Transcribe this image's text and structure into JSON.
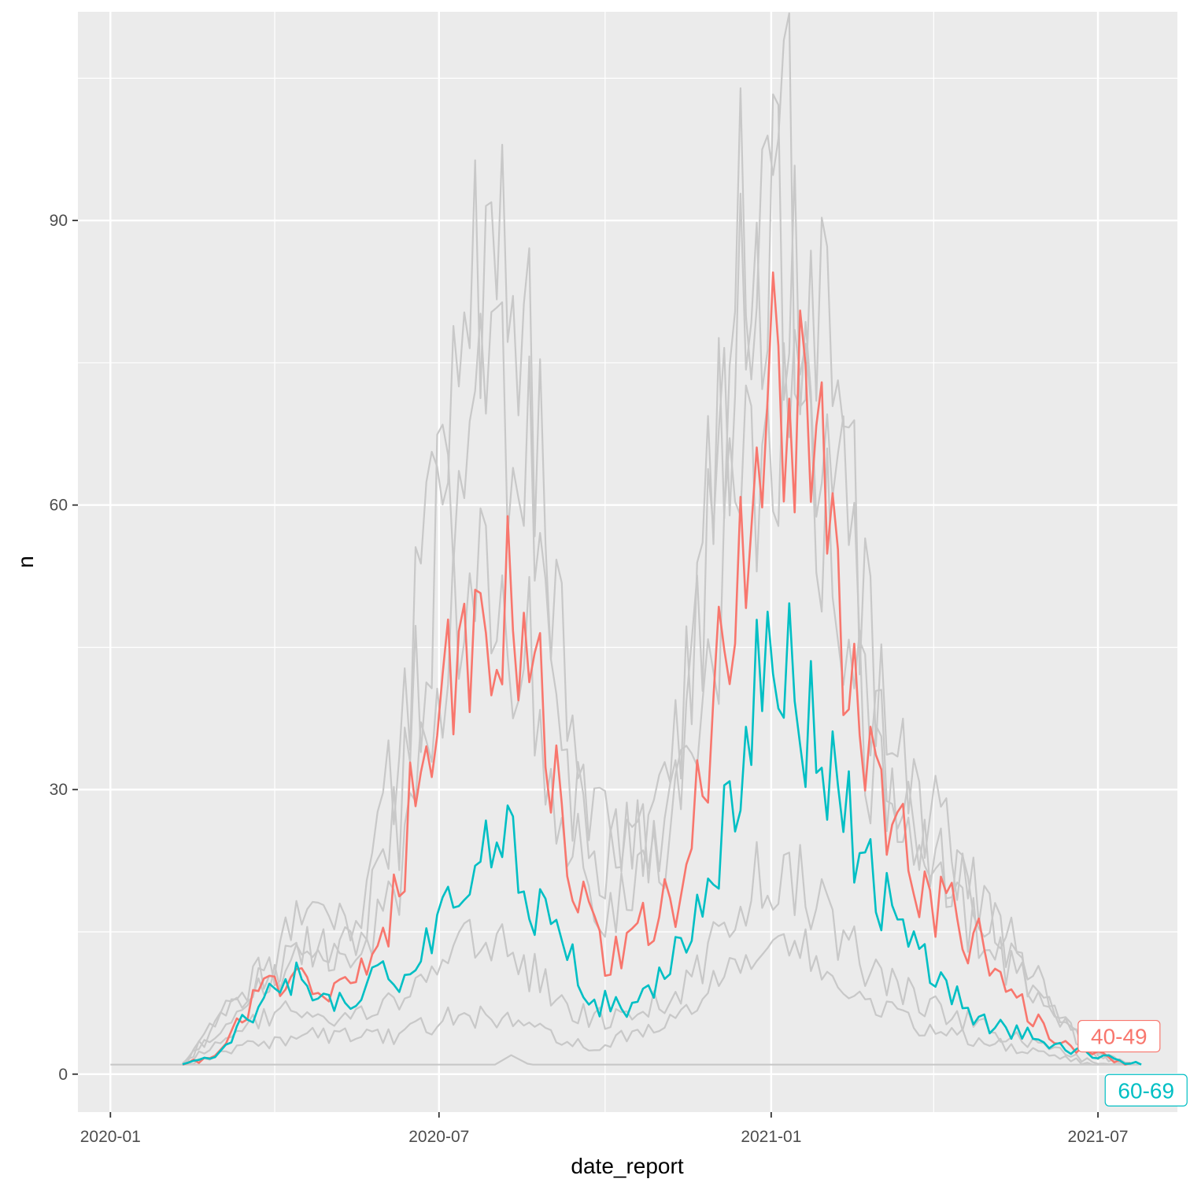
{
  "chart_data": {
    "type": "line",
    "title": "",
    "xlabel": "date_report",
    "ylabel": "n",
    "x_type": "date",
    "xlim": [
      "2019-12-14",
      "2021-08-14"
    ],
    "ylim": [
      -4,
      112
    ],
    "x_ticks": [
      {
        "date": "2020-01-01",
        "label": "2020-01"
      },
      {
        "date": "2020-07-01",
        "label": "2020-07"
      },
      {
        "date": "2021-01-01",
        "label": "2021-01"
      },
      {
        "date": "2021-07-01",
        "label": "2021-07"
      }
    ],
    "x_minor_ticks": [
      "2020-04-01",
      "2020-10-01",
      "2021-04-01"
    ],
    "y_ticks": [
      0,
      30,
      60,
      90
    ],
    "y_minor_ticks": [
      15,
      45,
      75,
      105
    ],
    "grid": true,
    "legend": "none",
    "colors": {
      "panel": "#ebebeb",
      "grid": "#ffffff",
      "background_series": "#c8c8c8",
      "series_40_49": "#f8766d",
      "series_60_69": "#00bfc4"
    },
    "highlighted_series": [
      {
        "name": "40-49",
        "color": "#f8766d",
        "label_end": "2021-07-20",
        "points": [
          [
            "2020-02-10",
            1
          ],
          [
            "2020-03-01",
            2
          ],
          [
            "2020-03-15",
            7
          ],
          [
            "2020-04-01",
            9
          ],
          [
            "2020-04-20",
            10
          ],
          [
            "2020-05-10",
            9
          ],
          [
            "2020-06-01",
            13
          ],
          [
            "2020-06-20",
            32
          ],
          [
            "2020-07-05",
            40
          ],
          [
            "2020-07-25",
            45
          ],
          [
            "2020-08-10",
            52
          ],
          [
            "2020-08-25",
            42
          ],
          [
            "2020-09-10",
            22
          ],
          [
            "2020-09-25",
            14
          ],
          [
            "2020-10-10",
            12
          ],
          [
            "2020-10-25",
            16
          ],
          [
            "2020-11-10",
            18
          ],
          [
            "2020-11-25",
            32
          ],
          [
            "2020-12-10",
            48
          ],
          [
            "2020-12-25",
            66
          ],
          [
            "2021-01-05",
            75
          ],
          [
            "2021-01-20",
            70
          ],
          [
            "2021-02-05",
            55
          ],
          [
            "2021-02-20",
            35
          ],
          [
            "2021-03-10",
            25
          ],
          [
            "2021-03-25",
            20
          ],
          [
            "2021-04-10",
            17
          ],
          [
            "2021-04-25",
            14
          ],
          [
            "2021-05-10",
            10
          ],
          [
            "2021-05-25",
            6
          ],
          [
            "2021-06-10",
            3
          ],
          [
            "2021-07-01",
            2
          ],
          [
            "2021-07-20",
            1
          ]
        ]
      },
      {
        "name": "60-69",
        "color": "#00bfc4",
        "label_end": "2021-07-25",
        "points": [
          [
            "2020-02-10",
            1
          ],
          [
            "2020-03-01",
            2
          ],
          [
            "2020-03-15",
            6
          ],
          [
            "2020-04-01",
            9
          ],
          [
            "2020-04-20",
            10
          ],
          [
            "2020-05-10",
            8
          ],
          [
            "2020-06-01",
            10
          ],
          [
            "2020-06-20",
            12
          ],
          [
            "2020-07-05",
            17
          ],
          [
            "2020-07-25",
            22
          ],
          [
            "2020-08-10",
            24
          ],
          [
            "2020-08-25",
            18
          ],
          [
            "2020-09-10",
            12
          ],
          [
            "2020-09-25",
            8
          ],
          [
            "2020-10-10",
            7
          ],
          [
            "2020-10-25",
            10
          ],
          [
            "2020-11-10",
            12
          ],
          [
            "2020-11-25",
            17
          ],
          [
            "2020-12-10",
            28
          ],
          [
            "2020-12-25",
            40
          ],
          [
            "2021-01-05",
            44
          ],
          [
            "2021-01-20",
            38
          ],
          [
            "2021-02-05",
            32
          ],
          [
            "2021-02-20",
            22
          ],
          [
            "2021-03-10",
            16
          ],
          [
            "2021-03-25",
            12
          ],
          [
            "2021-04-10",
            9
          ],
          [
            "2021-04-25",
            6
          ],
          [
            "2021-05-10",
            5
          ],
          [
            "2021-05-25",
            4
          ],
          [
            "2021-06-10",
            3
          ],
          [
            "2021-07-01",
            2
          ],
          [
            "2021-07-25",
            1
          ]
        ]
      }
    ],
    "background_series": [
      {
        "points": [
          [
            "2020-02-10",
            1
          ],
          [
            "2020-03-15",
            8
          ],
          [
            "2020-04-15",
            16
          ],
          [
            "2020-05-15",
            15
          ],
          [
            "2020-06-10",
            35
          ],
          [
            "2020-07-05",
            76
          ],
          [
            "2020-07-25",
            80
          ],
          [
            "2020-08-15",
            83
          ],
          [
            "2020-09-05",
            45
          ],
          [
            "2020-09-25",
            26
          ],
          [
            "2020-10-15",
            25
          ],
          [
            "2020-11-05",
            30
          ],
          [
            "2020-11-25",
            55
          ],
          [
            "2020-12-15",
            85
          ],
          [
            "2021-01-01",
            95
          ],
          [
            "2021-01-20",
            88
          ],
          [
            "2021-02-10",
            65
          ],
          [
            "2021-03-01",
            38
          ],
          [
            "2021-03-25",
            28
          ],
          [
            "2021-04-15",
            22
          ],
          [
            "2021-05-10",
            16
          ],
          [
            "2021-06-01",
            9
          ],
          [
            "2021-07-01",
            2
          ],
          [
            "2021-07-20",
            1
          ]
        ]
      },
      {
        "points": [
          [
            "2020-02-10",
            1
          ],
          [
            "2020-03-15",
            9
          ],
          [
            "2020-04-15",
            14
          ],
          [
            "2020-05-15",
            13
          ],
          [
            "2020-06-10",
            28
          ],
          [
            "2020-07-05",
            62
          ],
          [
            "2020-07-25",
            70
          ],
          [
            "2020-08-15",
            72
          ],
          [
            "2020-09-05",
            38
          ],
          [
            "2020-09-25",
            22
          ],
          [
            "2020-10-15",
            22
          ],
          [
            "2020-11-05",
            28
          ],
          [
            "2020-11-25",
            50
          ],
          [
            "2020-12-15",
            76
          ],
          [
            "2021-01-01",
            86
          ],
          [
            "2021-01-20",
            80
          ],
          [
            "2021-02-10",
            60
          ],
          [
            "2021-03-01",
            34
          ],
          [
            "2021-03-25",
            26
          ],
          [
            "2021-04-15",
            20
          ],
          [
            "2021-05-10",
            14
          ],
          [
            "2021-06-01",
            8
          ],
          [
            "2021-07-01",
            2
          ],
          [
            "2021-07-20",
            1
          ]
        ]
      },
      {
        "points": [
          [
            "2020-02-10",
            1
          ],
          [
            "2020-03-15",
            7
          ],
          [
            "2020-04-15",
            12
          ],
          [
            "2020-05-15",
            11
          ],
          [
            "2020-06-10",
            22
          ],
          [
            "2020-07-05",
            45
          ],
          [
            "2020-07-25",
            50
          ],
          [
            "2020-08-15",
            48
          ],
          [
            "2020-09-05",
            28
          ],
          [
            "2020-09-25",
            18
          ],
          [
            "2020-10-15",
            18
          ],
          [
            "2020-11-05",
            24
          ],
          [
            "2020-11-25",
            40
          ],
          [
            "2020-12-15",
            62
          ],
          [
            "2021-01-01",
            72
          ],
          [
            "2021-01-20",
            66
          ],
          [
            "2021-02-10",
            48
          ],
          [
            "2021-03-01",
            30
          ],
          [
            "2021-03-25",
            22
          ],
          [
            "2021-04-15",
            17
          ],
          [
            "2021-05-10",
            12
          ],
          [
            "2021-06-01",
            7
          ],
          [
            "2021-07-01",
            2
          ],
          [
            "2021-07-20",
            1
          ]
        ]
      },
      {
        "points": [
          [
            "2020-02-10",
            1
          ],
          [
            "2020-03-15",
            5
          ],
          [
            "2020-04-15",
            7
          ],
          [
            "2020-05-15",
            6
          ],
          [
            "2020-06-10",
            8
          ],
          [
            "2020-07-05",
            12
          ],
          [
            "2020-07-25",
            14
          ],
          [
            "2020-08-15",
            12
          ],
          [
            "2020-09-05",
            8
          ],
          [
            "2020-09-25",
            6
          ],
          [
            "2020-10-15",
            6
          ],
          [
            "2020-11-05",
            8
          ],
          [
            "2020-11-25",
            12
          ],
          [
            "2020-12-15",
            18
          ],
          [
            "2021-01-01",
            22
          ],
          [
            "2021-01-20",
            20
          ],
          [
            "2021-02-10",
            14
          ],
          [
            "2021-03-01",
            10
          ],
          [
            "2021-03-25",
            8
          ],
          [
            "2021-04-15",
            6
          ],
          [
            "2021-05-10",
            4
          ],
          [
            "2021-06-01",
            3
          ],
          [
            "2021-07-01",
            1
          ],
          [
            "2021-07-20",
            1
          ]
        ]
      },
      {
        "points": [
          [
            "2020-02-10",
            1
          ],
          [
            "2020-03-15",
            3
          ],
          [
            "2020-04-15",
            4
          ],
          [
            "2020-05-15",
            4
          ],
          [
            "2020-06-10",
            4
          ],
          [
            "2020-07-05",
            6
          ],
          [
            "2020-07-25",
            6
          ],
          [
            "2020-08-15",
            5
          ],
          [
            "2020-09-05",
            4
          ],
          [
            "2020-09-25",
            3
          ],
          [
            "2020-10-15",
            4
          ],
          [
            "2020-11-05",
            5
          ],
          [
            "2020-11-25",
            8
          ],
          [
            "2020-12-15",
            12
          ],
          [
            "2021-01-01",
            14
          ],
          [
            "2021-01-20",
            13
          ],
          [
            "2021-02-10",
            10
          ],
          [
            "2021-03-01",
            7
          ],
          [
            "2021-03-25",
            5
          ],
          [
            "2021-04-15",
            4
          ],
          [
            "2021-05-10",
            3
          ],
          [
            "2021-06-01",
            2
          ],
          [
            "2021-07-01",
            1
          ],
          [
            "2021-07-20",
            1
          ]
        ]
      },
      {
        "points": [
          [
            "2020-01-01",
            1
          ],
          [
            "2020-08-01",
            1
          ],
          [
            "2020-08-10",
            2
          ],
          [
            "2020-08-20",
            1
          ],
          [
            "2021-07-25",
            1
          ]
        ]
      }
    ]
  }
}
